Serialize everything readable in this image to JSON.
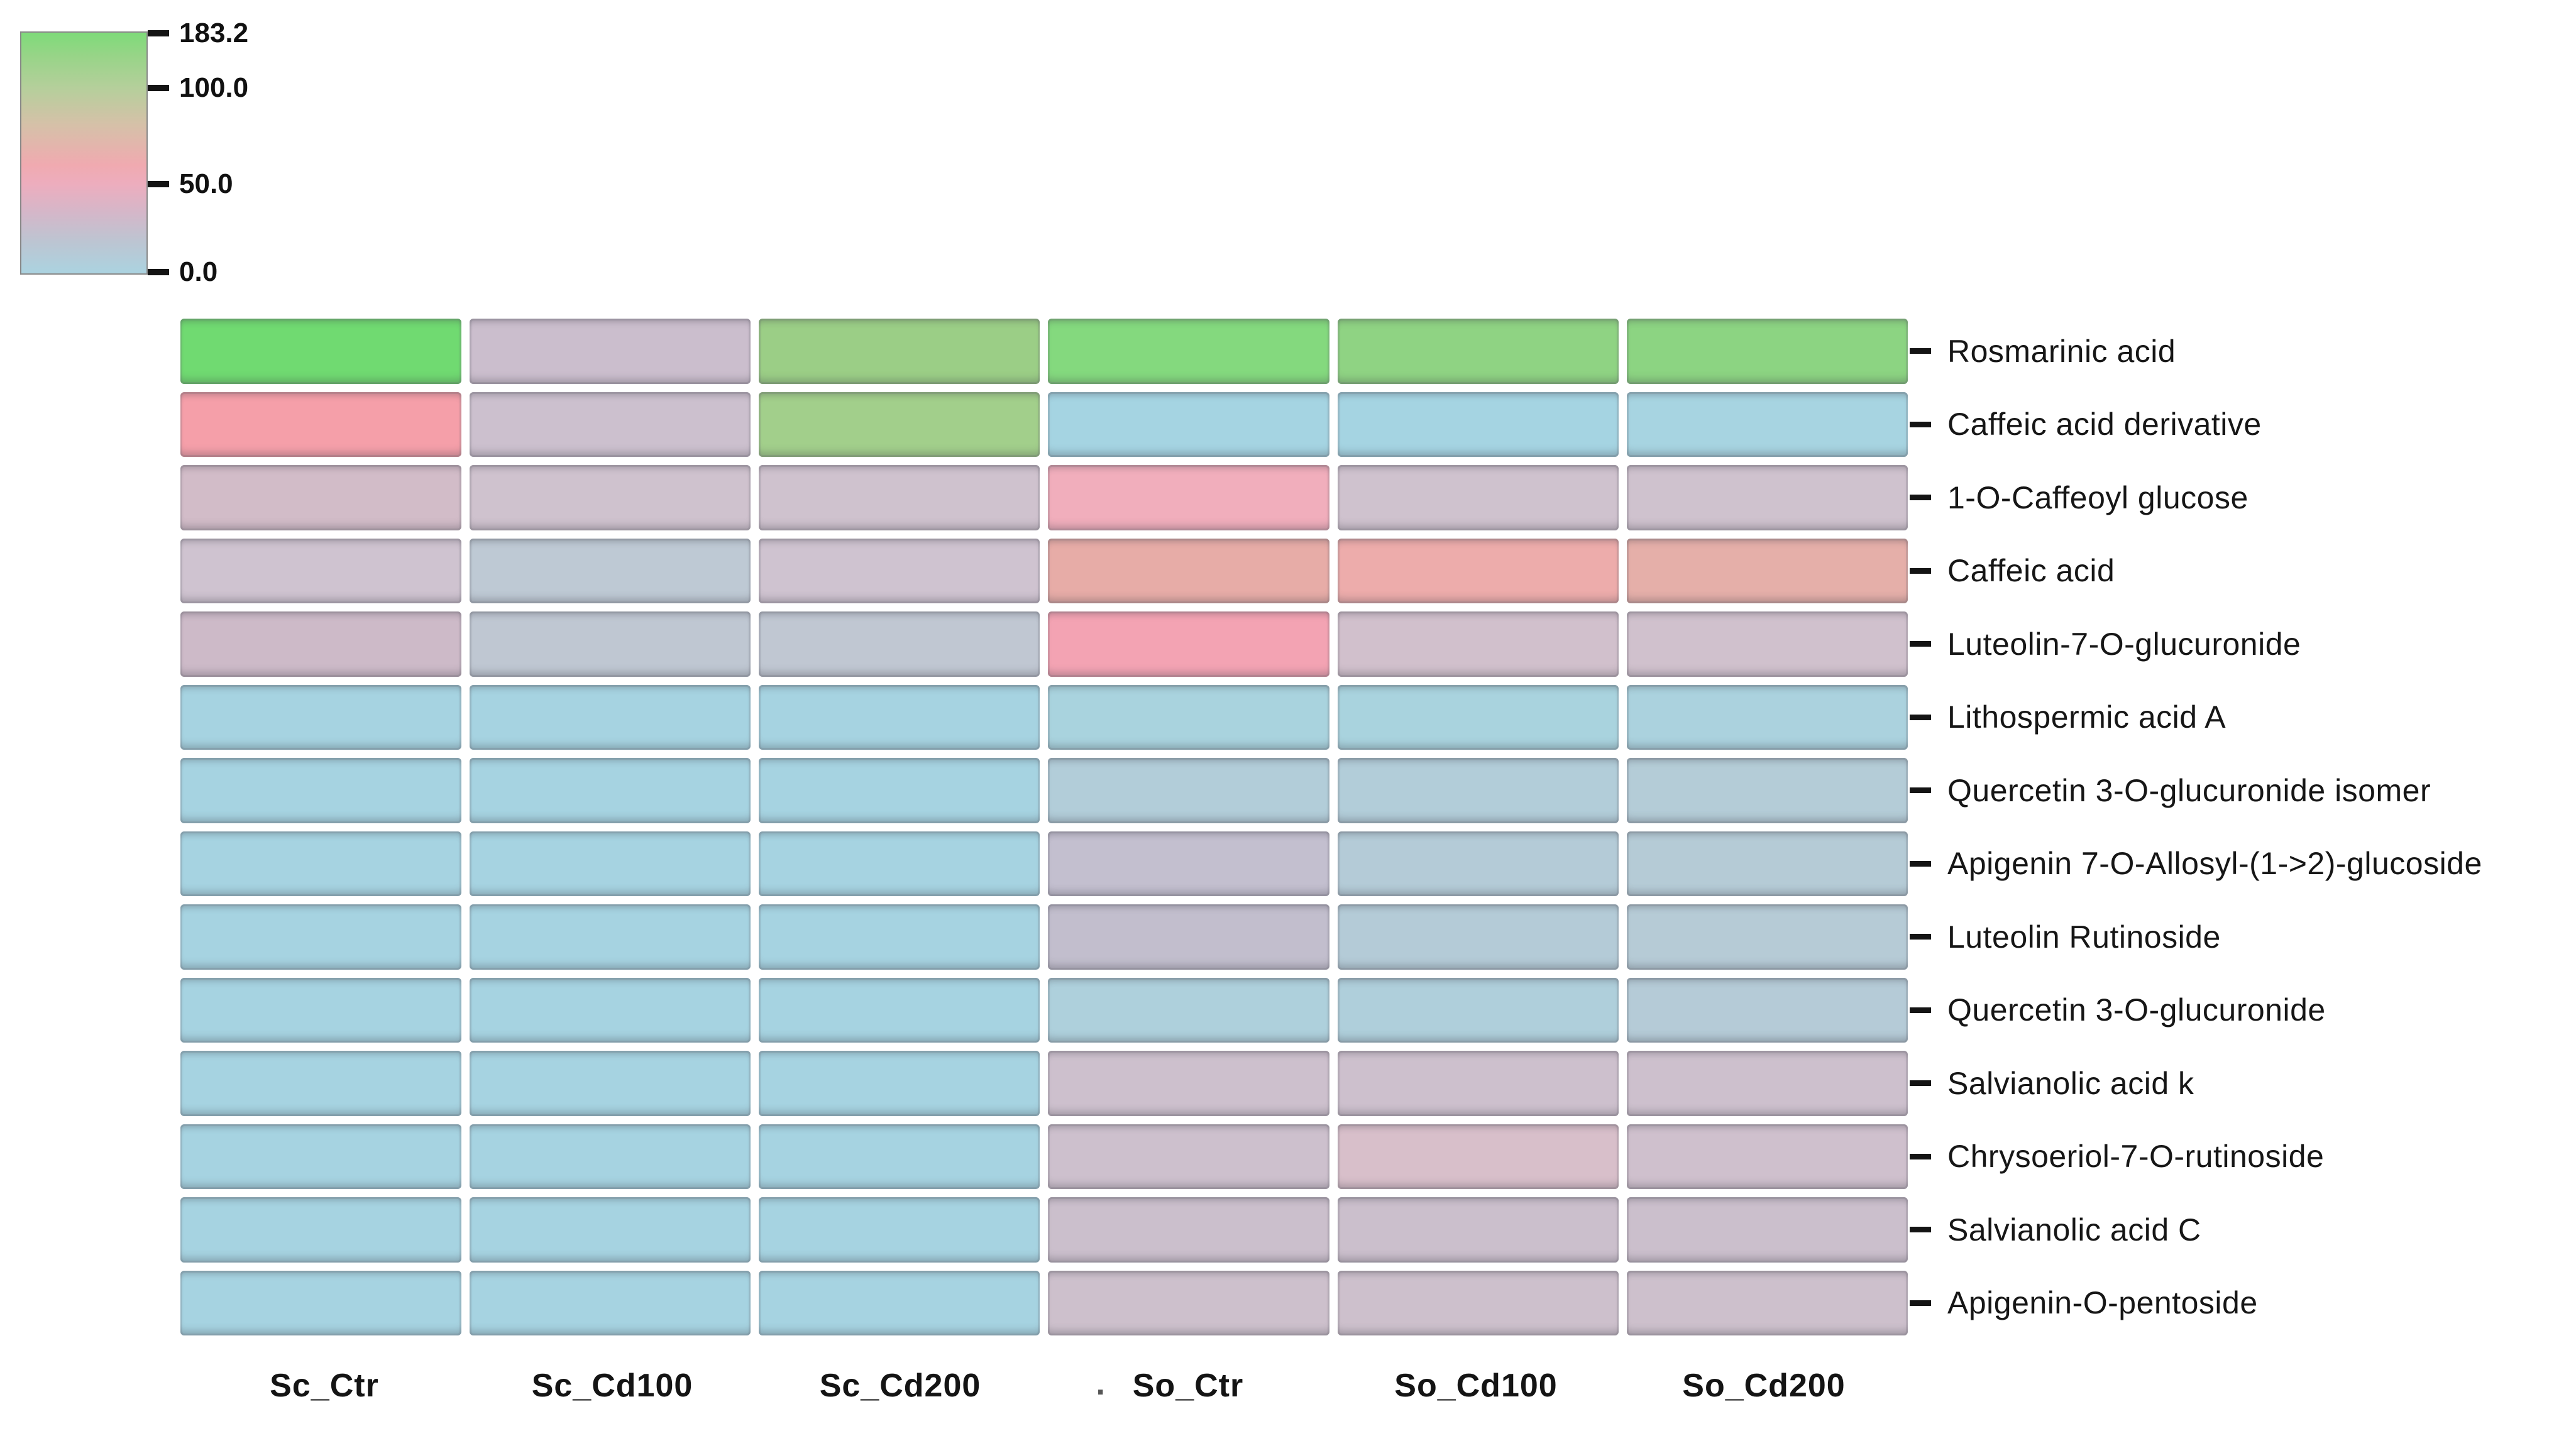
{
  "figure": {
    "background": "#ffffff"
  },
  "legend": {
    "ticks": [
      {
        "label": "183.2",
        "pos": 0.008
      },
      {
        "label": "100.0",
        "pos": 0.232
      },
      {
        "label": "50.0",
        "pos": 0.627
      },
      {
        "label": "0.0",
        "pos": 0.99
      }
    ],
    "gradient_stops": [
      [
        "0%",
        "#7edb79"
      ],
      [
        "10%",
        "#98d488"
      ],
      [
        "23%",
        "#b5cf9b"
      ],
      [
        "38%",
        "#d5c1a8"
      ],
      [
        "55%",
        "#f0aab0"
      ],
      [
        "63%",
        "#edadbe"
      ],
      [
        "75%",
        "#d4b7c9"
      ],
      [
        "87%",
        "#bcc5d2"
      ],
      [
        "100%",
        "#abd3e0"
      ]
    ]
  },
  "column_label_artifact": ".",
  "chart_data": {
    "type": "heatmap",
    "x_categories": [
      "Sc_Ctr",
      "Sc_Cd100",
      "Sc_Cd200",
      "So_Ctr",
      "So_Cd100",
      "So_Cd200"
    ],
    "y_categories": [
      "Rosmarinic acid",
      "Caffeic acid derivative",
      "1-O-Caffeoyl glucose",
      "Caffeic acid",
      "Luteolin-7-O-glucuronide",
      "Lithospermic acid A",
      "Quercetin 3-O-glucuronide isomer",
      "Apigenin 7-O-Allosyl-(1->2)-glucoside",
      "Luteolin Rutinoside",
      "Quercetin 3-O-glucuronide",
      "Salvianolic acid k",
      "Chrysoeriol-7-O-rutinoside",
      "Salvianolic acid C",
      "Apigenin-O-pentoside"
    ],
    "colorbar": {
      "min": 0.0,
      "max": 183.2,
      "tick_labels": [
        "183.2",
        "100.0",
        "50.0",
        "0.0"
      ]
    },
    "cell_colors": [
      [
        "#70da71",
        "#cbbecd",
        "#9bce86",
        "#84d97e",
        "#8fd383",
        "#8cd482"
      ],
      [
        "#f59fa9",
        "#ccc0ce",
        "#a2cf8b",
        "#a5d4e2",
        "#a5d4e2",
        "#a7d4e1"
      ],
      [
        "#d2bcc8",
        "#cfc2ce",
        "#cfc2ce",
        "#f1aebc",
        "#cfc2ce",
        "#cfc2ce"
      ],
      [
        "#cfc3d0",
        "#bec9d4",
        "#cfc3d0",
        "#e7aca7",
        "#edacab",
        "#e5afa9"
      ],
      [
        "#cdbac8",
        "#bfc7d2",
        "#c0c7d2",
        "#f3a3b3",
        "#d1c0cc",
        "#d0c1cd"
      ],
      [
        "#a6d3e1",
        "#a6d3e1",
        "#a6d3e1",
        "#a9d3de",
        "#a9d3de",
        "#abd2de"
      ],
      [
        "#a6d3e1",
        "#a6d3e1",
        "#a6d3e1",
        "#b2cdd9",
        "#b2cdd9",
        "#b4ccd7"
      ],
      [
        "#a6d3e1",
        "#a6d3e1",
        "#a6d3e1",
        "#c3bfcf",
        "#b4cbd7",
        "#b5cbd6"
      ],
      [
        "#a6d3e1",
        "#a6d3e1",
        "#a6d3e1",
        "#c2becd",
        "#b4cbd7",
        "#b6cbd6"
      ],
      [
        "#a6d3e1",
        "#a6d3e1",
        "#a6d3e1",
        "#aed0dc",
        "#afcfdb",
        "#b5cbd7"
      ],
      [
        "#a6d3e1",
        "#a6d3e1",
        "#a6d3e1",
        "#cdc0cd",
        "#cdc0cd",
        "#cdc0cd"
      ],
      [
        "#a6d3e1",
        "#a6d3e1",
        "#a6d3e1",
        "#cdc0cd",
        "#d8bfca",
        "#cfc0cd"
      ],
      [
        "#a6d3e1",
        "#a6d3e1",
        "#a6d3e1",
        "#cbbfcc",
        "#cbbfcc",
        "#cbbfcc"
      ],
      [
        "#a6d3e1",
        "#a6d3e1",
        "#a6d3e1",
        "#cdc0cc",
        "#cdc0cc",
        "#cdc0cc"
      ]
    ],
    "estimated_values": [
      [
        180,
        38,
        115,
        160,
        140,
        145
      ],
      [
        62,
        38,
        110,
        3,
        3,
        3
      ],
      [
        44,
        38,
        38,
        58,
        38,
        38
      ],
      [
        38,
        20,
        38,
        70,
        68,
        70
      ],
      [
        42,
        21,
        21,
        60,
        40,
        40
      ],
      [
        3,
        3,
        3,
        6,
        6,
        6
      ],
      [
        3,
        3,
        3,
        15,
        15,
        14
      ],
      [
        3,
        3,
        3,
        30,
        16,
        16
      ],
      [
        3,
        3,
        3,
        29,
        16,
        15
      ],
      [
        3,
        3,
        3,
        8,
        8,
        14
      ],
      [
        3,
        3,
        3,
        36,
        36,
        36
      ],
      [
        3,
        3,
        3,
        36,
        46,
        37
      ],
      [
        3,
        3,
        3,
        35,
        35,
        35
      ],
      [
        3,
        3,
        3,
        36,
        36,
        36
      ]
    ],
    "values_note": "numeric values estimated from the 0.0-183.2 color scale; only colors are rendered in the source figure"
  }
}
